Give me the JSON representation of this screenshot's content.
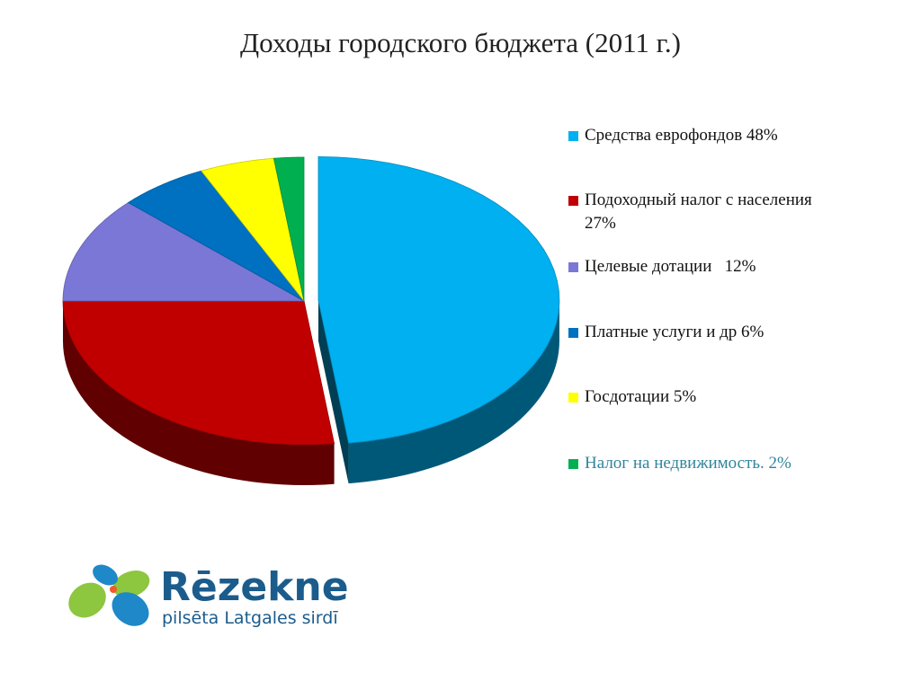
{
  "chart_data": {
    "type": "pie",
    "title": "Доходы городского бюджета (2011 г.)",
    "series": [
      {
        "name": "Средства еврофондов 48%",
        "color": "#00b0f0",
        "values": [
          48
        ]
      },
      {
        "name": "Подоходный налог с населения 27%",
        "color": "#c00000",
        "values": [
          27
        ]
      },
      {
        "name": "Целевые дотации   12%",
        "color": "#7b77d6",
        "values": [
          12
        ]
      },
      {
        "name": "Платные услуги и др 6%",
        "color": "#0070c0",
        "values": [
          6
        ]
      },
      {
        "name": "Госдотации 5%",
        "color": "#ffff00",
        "values": [
          5
        ]
      },
      {
        "name": "Налог на недвижимость. 2%",
        "color": "#00b050",
        "values": [
          2
        ]
      }
    ],
    "legend": "right"
  },
  "logo": {
    "name": "Rēzekne",
    "tagline": "pilsēta Latgales sirdī"
  }
}
